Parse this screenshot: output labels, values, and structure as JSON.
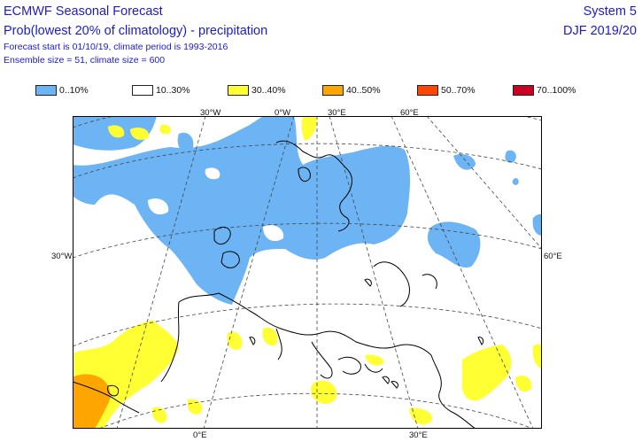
{
  "header": {
    "title": "ECMWF Seasonal Forecast",
    "subtitle": "Prob(lowest 20% of climatology) - precipitation",
    "forecast_info": "Forecast start is 01/10/19, climate period is 1993-2016",
    "ensemble_info": "Ensemble size = 51, climate size = 600",
    "system": "System 5",
    "period": "DJF 2019/20"
  },
  "legend": [
    {
      "label": "0..10%",
      "color": "#6cb4f4"
    },
    {
      "label": "10..30%",
      "color": "#ffffff"
    },
    {
      "label": "30..40%",
      "color": "#ffff33"
    },
    {
      "label": "40..50%",
      "color": "#ffa500"
    },
    {
      "label": "50..70%",
      "color": "#ff4500"
    },
    {
      "label": "70..100%",
      "color": "#cc0022"
    }
  ],
  "axis_labels": {
    "top": [
      "30°W",
      "0°W",
      "30°E",
      "60°E"
    ],
    "left": "30°W",
    "right": "60°E",
    "bottom": [
      "0°E",
      "30°E"
    ]
  },
  "colors": {
    "text": "#1a1ad6",
    "blue": "#6cb4f4",
    "yellow": "#ffff33",
    "orange": "#ffa500",
    "coast": "#000000",
    "grid": "#444444"
  }
}
